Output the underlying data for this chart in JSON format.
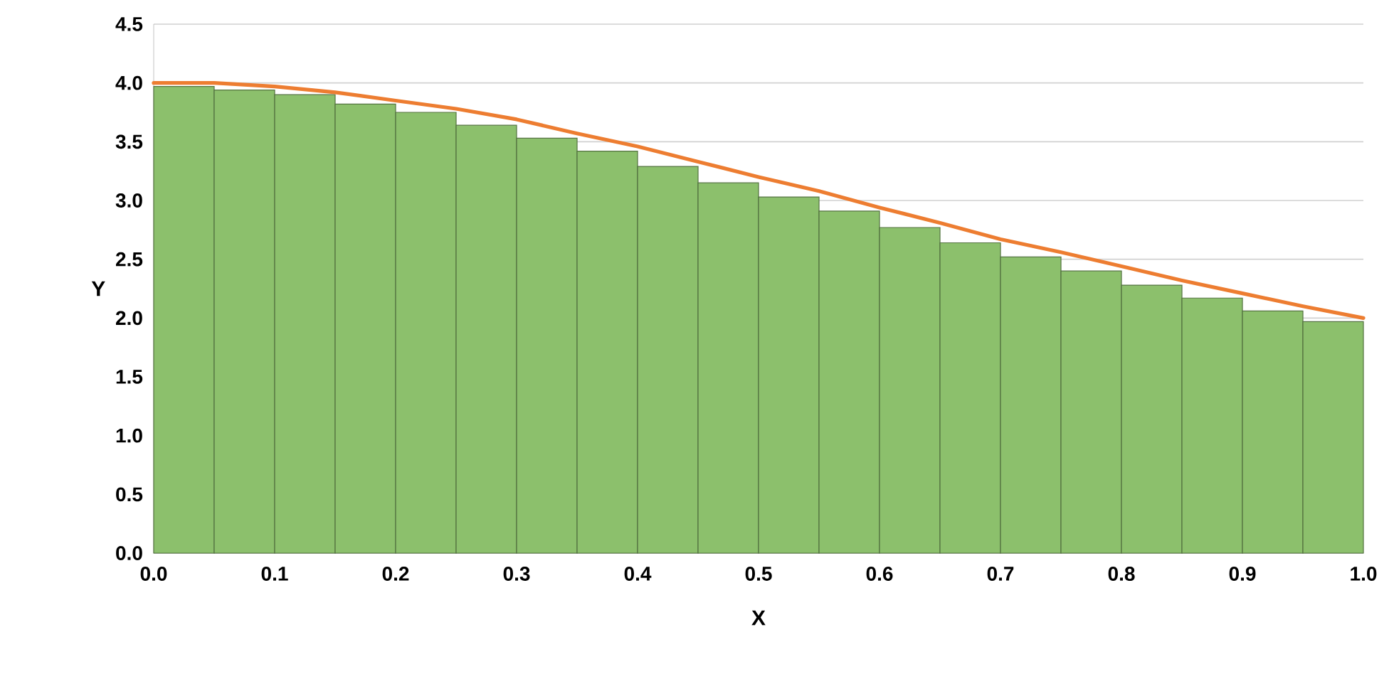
{
  "chart_data": {
    "type": "histogram",
    "xlabel": "X",
    "ylabel": "Y",
    "grid": "y",
    "marker": "none",
    "xlim": [
      0,
      1
    ],
    "ylim": [
      0,
      4.5
    ],
    "xticks": [
      {
        "value": 0,
        "label": "0.0"
      },
      {
        "value": 0.1,
        "label": "0.1"
      },
      {
        "value": 0.2,
        "label": "0.2"
      },
      {
        "value": 0.3,
        "label": "0.3"
      },
      {
        "value": 0.4,
        "label": "0.4"
      },
      {
        "value": 0.5,
        "label": "0.5"
      },
      {
        "value": 0.6,
        "label": "0.6"
      },
      {
        "value": 0.7,
        "label": "0.7"
      },
      {
        "value": 0.8,
        "label": "0.8"
      },
      {
        "value": 0.9,
        "label": "0.9"
      },
      {
        "value": 1,
        "label": "1.0"
      }
    ],
    "yticks": [
      {
        "value": 0,
        "label": "0.0"
      },
      {
        "value": 0.5,
        "label": "0.5"
      },
      {
        "value": 1,
        "label": "1.0"
      },
      {
        "value": 1.5,
        "label": "1.5"
      },
      {
        "value": 2,
        "label": "2.0"
      },
      {
        "value": 2.5,
        "label": "2.5"
      },
      {
        "value": 3,
        "label": "3.0"
      },
      {
        "value": 3.5,
        "label": "3.5"
      },
      {
        "value": 4,
        "label": "4.0"
      },
      {
        "value": 4.5,
        "label": "4.5"
      }
    ],
    "series": [
      {
        "color": "#8cc06c",
        "bins": [
          0,
          0.05,
          0.1,
          0.15,
          0.2,
          0.25,
          0.3,
          0.35,
          0.4,
          0.45,
          0.5,
          0.55,
          0.6,
          0.65,
          0.7,
          0.75,
          0.8,
          0.85,
          0.9,
          0.95,
          1.0
        ],
        "values": [
          3.97,
          3.94,
          3.9,
          3.82,
          3.75,
          3.64,
          3.53,
          3.42,
          3.29,
          3.15,
          3.03,
          2.91,
          2.77,
          2.64,
          2.52,
          2.4,
          2.28,
          2.17,
          2.06,
          1.97
        ]
      },
      {
        "type": "line",
        "color": "#ed7d31",
        "x": [
          0,
          0.05,
          0.1,
          0.15,
          0.2,
          0.25,
          0.3,
          0.35,
          0.4,
          0.45,
          0.5,
          0.55,
          0.6,
          0.65,
          0.7,
          0.75,
          0.8,
          0.85,
          0.9,
          0.95,
          1.0
        ],
        "values": [
          4.0,
          4.0,
          3.97,
          3.92,
          3.85,
          3.78,
          3.69,
          3.57,
          3.46,
          3.33,
          3.2,
          3.08,
          2.94,
          2.81,
          2.67,
          2.56,
          2.44,
          2.32,
          2.21,
          2.1,
          2.0
        ]
      }
    ]
  }
}
